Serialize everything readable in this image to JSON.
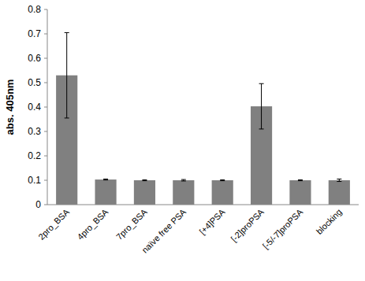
{
  "chart_data": {
    "type": "bar",
    "y_label": "abs. 405nm",
    "categories": [
      "2pro_BSA",
      "4pro_BSA",
      "7pro_BSA",
      "naïve free PSA",
      "[+4]PSA",
      "[-2]proPSA",
      "[-5/-7]proPSA",
      "blocking"
    ],
    "values": [
      0.53,
      0.103,
      0.1,
      0.1,
      0.1,
      0.403,
      0.1,
      0.1
    ],
    "errors": [
      0.175,
      0.002,
      0.002,
      0.003,
      0.002,
      0.093,
      0.002,
      0.005
    ],
    "color": "#808080",
    "ylim": [
      0,
      0.8
    ],
    "yticks": [
      0,
      0.1,
      0.2,
      0.3,
      0.4,
      0.5,
      0.6,
      0.7,
      0.8
    ],
    "grid": false
  }
}
